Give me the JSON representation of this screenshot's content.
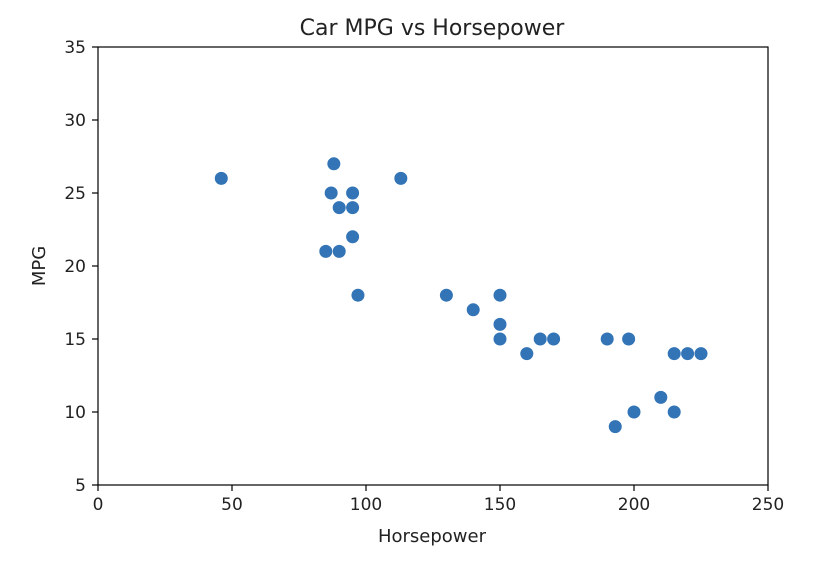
{
  "chart_data": {
    "type": "scatter",
    "title": "Car MPG vs Horsepower",
    "xlabel": "Horsepower",
    "ylabel": "MPG",
    "xlim": [
      0,
      250
    ],
    "ylim": [
      5,
      35
    ],
    "xticks": [
      "0",
      "50",
      "100",
      "150",
      "200",
      "250"
    ],
    "yticks": [
      "5",
      "10",
      "15",
      "20",
      "25",
      "30",
      "35"
    ],
    "grid": false,
    "legend": "none",
    "marker_color": "#3274b5",
    "points": [
      {
        "x": 46,
        "y": 26
      },
      {
        "x": 85,
        "y": 21
      },
      {
        "x": 87,
        "y": 25
      },
      {
        "x": 88,
        "y": 27
      },
      {
        "x": 90,
        "y": 24
      },
      {
        "x": 90,
        "y": 21
      },
      {
        "x": 95,
        "y": 25
      },
      {
        "x": 95,
        "y": 24
      },
      {
        "x": 95,
        "y": 22
      },
      {
        "x": 97,
        "y": 18
      },
      {
        "x": 113,
        "y": 26
      },
      {
        "x": 130,
        "y": 18
      },
      {
        "x": 140,
        "y": 17
      },
      {
        "x": 150,
        "y": 18
      },
      {
        "x": 150,
        "y": 16
      },
      {
        "x": 150,
        "y": 15
      },
      {
        "x": 160,
        "y": 14
      },
      {
        "x": 165,
        "y": 15
      },
      {
        "x": 170,
        "y": 15
      },
      {
        "x": 190,
        "y": 15
      },
      {
        "x": 193,
        "y": 9
      },
      {
        "x": 198,
        "y": 15
      },
      {
        "x": 200,
        "y": 10
      },
      {
        "x": 210,
        "y": 11
      },
      {
        "x": 215,
        "y": 14
      },
      {
        "x": 215,
        "y": 10
      },
      {
        "x": 220,
        "y": 14
      },
      {
        "x": 225,
        "y": 14
      }
    ]
  }
}
